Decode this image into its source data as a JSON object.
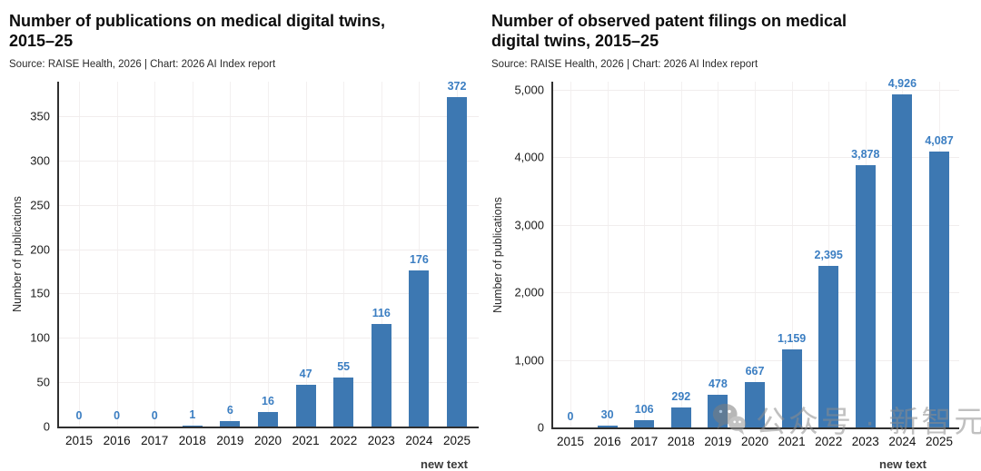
{
  "watermark": {
    "icon": "wechat-icon",
    "text": "公众号 · 新智元"
  },
  "footer_note": "new text",
  "colors": {
    "bar": "#3d78b2",
    "value_label": "#3b7ec2",
    "axis": "#2f2f2f",
    "grid": "#f1eded",
    "title": "#0c0c0c"
  },
  "chart_data": [
    {
      "type": "bar",
      "title": "Number of publications on medical digital twins, 2015–25",
      "title_lines": [
        "Number of publications on medical digital twins,",
        "2015–25"
      ],
      "source": "Source: RAISE Health, 2026 | Chart: 2026 AI Index report",
      "xlabel": "",
      "ylabel": "Number of publications",
      "categories": [
        "2015",
        "2016",
        "2017",
        "2018",
        "2019",
        "2020",
        "2021",
        "2022",
        "2023",
        "2024",
        "2025"
      ],
      "values": [
        0,
        0,
        0,
        1,
        6,
        16,
        47,
        55,
        116,
        176,
        372
      ],
      "value_labels": [
        "0",
        "0",
        "0",
        "1",
        "6",
        "16",
        "47",
        "55",
        "116",
        "176",
        "372"
      ],
      "yticks": [
        0,
        50,
        100,
        150,
        200,
        250,
        300,
        350
      ],
      "ytick_labels": [
        "0",
        "50",
        "100",
        "150",
        "200",
        "250",
        "300",
        "350"
      ],
      "ylim": [
        0,
        389
      ],
      "grid": true,
      "legend": "none"
    },
    {
      "type": "bar",
      "title": "Number of observed patent filings on medical digital twins, 2015–25",
      "title_lines": [
        "Number of observed patent filings on medical",
        "digital twins, 2015–25"
      ],
      "source": "Source: RAISE Health, 2026 | Chart: 2026 AI Index report",
      "xlabel": "",
      "ylabel": "Number of publications",
      "categories": [
        "2015",
        "2016",
        "2017",
        "2018",
        "2019",
        "2020",
        "2021",
        "2022",
        "2023",
        "2024",
        "2025"
      ],
      "values": [
        0,
        30,
        106,
        292,
        478,
        667,
        1159,
        2395,
        3878,
        4926,
        4087
      ],
      "value_labels": [
        "0",
        "30",
        "106",
        "292",
        "478",
        "667",
        "1,159",
        "2,395",
        "3,878",
        "4,926",
        "4,087"
      ],
      "yticks": [
        0,
        1000,
        2000,
        3000,
        4000,
        5000
      ],
      "ytick_labels": [
        "0",
        "1,000",
        "2,000",
        "3,000",
        "4,000",
        "5,000"
      ],
      "ylim": [
        0,
        5120
      ],
      "grid": true,
      "legend": "none"
    }
  ]
}
